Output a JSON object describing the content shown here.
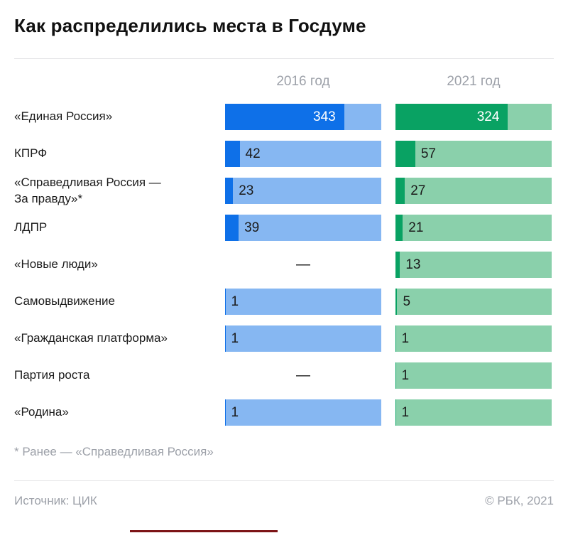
{
  "title": "Как распределились места в Госдуме",
  "columns": {
    "c2016": {
      "label": "2016 год"
    },
    "c2021": {
      "label": "2021 год"
    }
  },
  "empty_value_symbol": "—",
  "rows": [
    {
      "label": "«Единая Россия»",
      "v2016": 343,
      "v2021": 324
    },
    {
      "label": "КПРФ",
      "v2016": 42,
      "v2021": 57
    },
    {
      "label": "«Справедливая Россия —\nЗа правду»*",
      "v2016": 23,
      "v2021": 27
    },
    {
      "label": "ЛДПР",
      "v2016": 39,
      "v2021": 21
    },
    {
      "label": "«Новые люди»",
      "v2016": null,
      "v2021": 13
    },
    {
      "label": "Самовыдвижение",
      "v2016": 1,
      "v2021": 5
    },
    {
      "label": "«Гражданская платформа»",
      "v2016": 1,
      "v2021": 1
    },
    {
      "label": "Партия роста",
      "v2016": null,
      "v2021": 1
    },
    {
      "label": "«Родина»",
      "v2016": 1,
      "v2021": 1
    }
  ],
  "chart_data": {
    "type": "bar",
    "title": "Как распределились места в Госдуме",
    "total_seats": 450,
    "categories": [
      "«Единая Россия»",
      "КПРФ",
      "«Справедливая Россия — За правду»*",
      "ЛДПР",
      "«Новые люди»",
      "Самовыдвижение",
      "«Гражданская платформа»",
      "Партия роста",
      "«Родина»"
    ],
    "series": [
      {
        "name": "2016 год",
        "values": [
          343,
          42,
          23,
          39,
          null,
          1,
          1,
          null,
          1
        ]
      },
      {
        "name": "2021 год",
        "values": [
          324,
          57,
          27,
          21,
          13,
          5,
          1,
          1,
          1
        ]
      }
    ],
    "missing_values_shown_as": "—",
    "xlim": [
      0,
      450
    ],
    "grid": false,
    "legend_position": "column headers above bars",
    "colors": {
      "blue_dark": "#0e70e8",
      "blue_light": "#86b7f2",
      "green_dark": "#09a263",
      "green_light": "#8ad0ab"
    }
  },
  "footnote": "* Ранее — «Справедливая Россия»",
  "footer": {
    "source": "Источник: ЦИК",
    "copyright": "© РБК, 2021"
  }
}
